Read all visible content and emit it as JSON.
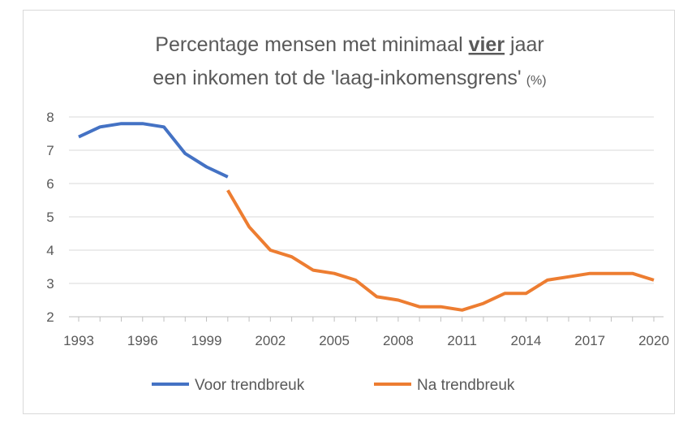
{
  "chart_data": {
    "type": "line",
    "title": {
      "line1_prefix": "Percentage mensen met minimaal ",
      "line1_bold": "vier",
      "line1_suffix": " jaar",
      "line2": "een inkomen tot de 'laag-inkomensgrens'",
      "unit": "(%)"
    },
    "xlabel": "",
    "ylabel": "",
    "xlim": [
      1993,
      2020
    ],
    "ylim": [
      2,
      8
    ],
    "yticks": [
      2,
      3,
      4,
      5,
      6,
      7,
      8
    ],
    "xticks": [
      "1993",
      "1996",
      "1999",
      "2002",
      "2005",
      "2008",
      "2011",
      "2014",
      "2017",
      "2020"
    ],
    "grid": true,
    "legend_position": "bottom",
    "series": [
      {
        "name": "Voor trendbreuk",
        "color": "#4472C4",
        "x": [
          1993,
          1994,
          1995,
          1996,
          1997,
          1998,
          1999,
          2000
        ],
        "values": [
          7.4,
          7.7,
          7.8,
          7.8,
          7.7,
          6.9,
          6.5,
          6.2
        ]
      },
      {
        "name": "Na trendbreuk",
        "color": "#ED7D31",
        "x": [
          2000,
          2001,
          2002,
          2003,
          2004,
          2005,
          2006,
          2007,
          2008,
          2009,
          2010,
          2011,
          2012,
          2013,
          2014,
          2015,
          2016,
          2017,
          2018,
          2019,
          2020
        ],
        "values": [
          5.8,
          4.7,
          4.0,
          3.8,
          3.4,
          3.3,
          3.1,
          2.6,
          2.5,
          2.3,
          2.3,
          2.2,
          2.4,
          2.7,
          2.7,
          3.1,
          3.2,
          3.3,
          3.3,
          3.3,
          3.1
        ]
      }
    ]
  }
}
